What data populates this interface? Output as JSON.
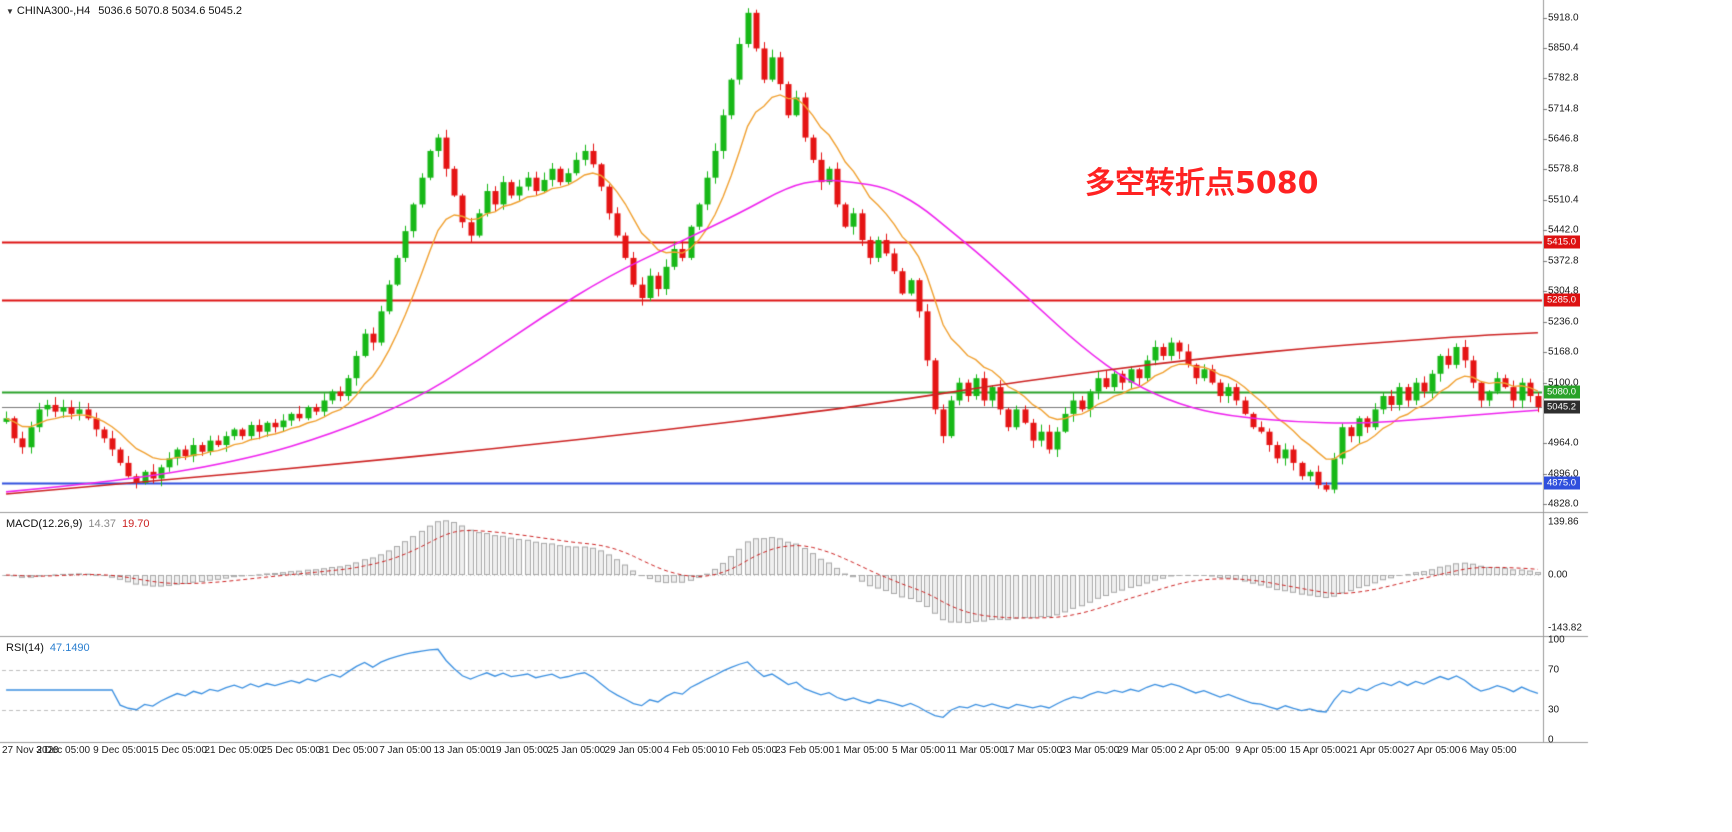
{
  "header": {
    "expander": "▼",
    "symbol": "CHINA300-,H4",
    "ohlc": "5036.6 5070.8 5034.6 5045.2"
  },
  "annotation": {
    "text": "多空转折点5080",
    "color": "#ff2222"
  },
  "price_panel": {
    "ylim": [
      4812,
      5952
    ],
    "y_ticks": [
      5918.0,
      5850.4,
      5782.8,
      5714.8,
      5646.8,
      5578.8,
      5510.4,
      5442.0,
      5372.8,
      5304.8,
      5236.0,
      5168.0,
      5100.0,
      4964.0,
      4896.0,
      4828.0
    ],
    "hlines": [
      {
        "value": 5415.0,
        "label": "5415.0",
        "color": "#dd1111",
        "tag_bg": "#dd1111"
      },
      {
        "value": 5285.0,
        "label": "5285.0",
        "color": "#dd1111",
        "tag_bg": "#dd1111"
      },
      {
        "value": 5080.0,
        "label": "5080.0",
        "color": "#28a228",
        "tag_bg": "#28a228"
      },
      {
        "value": 4875.0,
        "label": "4875.0",
        "color": "#2f4fdd",
        "tag_bg": "#2f4fdd"
      }
    ],
    "current_price": {
      "value": 5045.2,
      "label": "5045.2",
      "line_color": "#777777",
      "tag_bg": "#2e2e2e"
    }
  },
  "macd_panel": {
    "label": "MACD(12.26,9)",
    "value_main": "14.37",
    "value_signal": "19.70",
    "y_labels": [
      "139.86",
      "0.00",
      "-143.82"
    ],
    "params": {
      "fast": 12,
      "slow": 26,
      "signal": 9
    },
    "colors": {
      "hist_fill": "#efefef",
      "hist_stroke": "#a8a8a8",
      "signal": "#cc2222"
    }
  },
  "rsi_panel": {
    "label": "RSI(14)",
    "value": "47.1490",
    "period": 14,
    "levels": [
      70,
      30
    ],
    "y_labels": [
      "100",
      "70",
      "30",
      "0"
    ],
    "line_color": "#3a8fe0"
  },
  "chart_data": {
    "type": "candlestick",
    "symbol": "CHINA300-",
    "timeframe": "H4",
    "bars_per_label": 7,
    "x_labels": [
      "27 Nov 2020",
      "3 Dec 05:00",
      "9 Dec 05:00",
      "15 Dec 05:00",
      "21 Dec 05:00",
      "25 Dec 05:00",
      "31 Dec 05:00",
      "7 Jan 05:00",
      "13 Jan 05:00",
      "19 Jan 05:00",
      "25 Jan 05:00",
      "29 Jan 05:00",
      "4 Feb 05:00",
      "10 Feb 05:00",
      "23 Feb 05:00",
      "1 Mar 05:00",
      "5 Mar 05:00",
      "11 Mar 05:00",
      "17 Mar 05:00",
      "23 Mar 05:00",
      "29 Mar 05:00",
      "2 Apr 05:00",
      "9 Apr 05:00",
      "15 Apr 05:00",
      "21 Apr 05:00",
      "27 Apr 05:00",
      "6 May 05:00"
    ],
    "closes": [
      5020,
      4975,
      4955,
      5000,
      5040,
      5050,
      5035,
      5045,
      5030,
      5040,
      5020,
      4995,
      4975,
      4950,
      4920,
      4890,
      4875,
      4900,
      4885,
      4910,
      4930,
      4950,
      4935,
      4960,
      4945,
      4970,
      4960,
      4980,
      4995,
      4980,
      5005,
      4990,
      5010,
      5000,
      5015,
      5030,
      5020,
      5045,
      5035,
      5060,
      5080,
      5070,
      5110,
      5160,
      5210,
      5190,
      5260,
      5320,
      5380,
      5440,
      5500,
      5560,
      5620,
      5650,
      5580,
      5520,
      5460,
      5430,
      5480,
      5530,
      5500,
      5550,
      5520,
      5540,
      5560,
      5530,
      5555,
      5580,
      5550,
      5570,
      5600,
      5620,
      5590,
      5540,
      5480,
      5430,
      5380,
      5320,
      5290,
      5340,
      5310,
      5360,
      5400,
      5380,
      5450,
      5500,
      5560,
      5620,
      5700,
      5780,
      5860,
      5930,
      5850,
      5780,
      5830,
      5770,
      5700,
      5740,
      5650,
      5600,
      5550,
      5580,
      5500,
      5450,
      5480,
      5420,
      5380,
      5420,
      5390,
      5350,
      5300,
      5330,
      5260,
      5150,
      5040,
      4980,
      5060,
      5100,
      5070,
      5110,
      5060,
      5090,
      5040,
      5000,
      5040,
      5010,
      4970,
      4990,
      4950,
      4990,
      5030,
      5060,
      5040,
      5080,
      5110,
      5090,
      5120,
      5100,
      5130,
      5110,
      5150,
      5180,
      5160,
      5190,
      5170,
      5140,
      5110,
      5130,
      5100,
      5070,
      5090,
      5060,
      5030,
      5000,
      4990,
      4960,
      4930,
      4950,
      4920,
      4890,
      4900,
      4870,
      4860,
      4930,
      5000,
      4980,
      5020,
      5000,
      5040,
      5070,
      5050,
      5090,
      5060,
      5100,
      5080,
      5120,
      5160,
      5140,
      5180,
      5150,
      5100,
      5060,
      5080,
      5110,
      5090,
      5060,
      5100,
      5070,
      5045.2
    ],
    "colors": {
      "up": "#17b817",
      "down": "#e51414"
    },
    "ma_overlays": [
      {
        "name": "fast-ma-orange",
        "type": "ema",
        "period": 10,
        "color": "#f0a030"
      },
      {
        "name": "mid-ma-magenta",
        "type": "anchors",
        "color": "#ee22ee",
        "points": [
          [
            0,
            4855
          ],
          [
            15,
            4880
          ],
          [
            30,
            4930
          ],
          [
            40,
            4985
          ],
          [
            50,
            5060
          ],
          [
            58,
            5150
          ],
          [
            66,
            5250
          ],
          [
            74,
            5340
          ],
          [
            82,
            5410
          ],
          [
            90,
            5480
          ],
          [
            96,
            5540
          ],
          [
            100,
            5556
          ],
          [
            104,
            5550
          ],
          [
            108,
            5538
          ],
          [
            112,
            5500
          ],
          [
            116,
            5440
          ],
          [
            120,
            5380
          ],
          [
            126,
            5280
          ],
          [
            132,
            5180
          ],
          [
            138,
            5100
          ],
          [
            144,
            5050
          ],
          [
            150,
            5025
          ],
          [
            158,
            5012
          ],
          [
            166,
            5008
          ],
          [
            174,
            5018
          ],
          [
            182,
            5030
          ],
          [
            188,
            5038
          ]
        ]
      },
      {
        "name": "slow-ma-red",
        "type": "anchors",
        "color": "#cc2222",
        "points": [
          [
            0,
            4850
          ],
          [
            20,
            4882
          ],
          [
            40,
            4916
          ],
          [
            60,
            4952
          ],
          [
            80,
            4992
          ],
          [
            100,
            5036
          ],
          [
            110,
            5062
          ],
          [
            120,
            5090
          ],
          [
            130,
            5116
          ],
          [
            140,
            5140
          ],
          [
            150,
            5160
          ],
          [
            160,
            5178
          ],
          [
            170,
            5192
          ],
          [
            180,
            5205
          ],
          [
            188,
            5212
          ]
        ]
      }
    ]
  }
}
